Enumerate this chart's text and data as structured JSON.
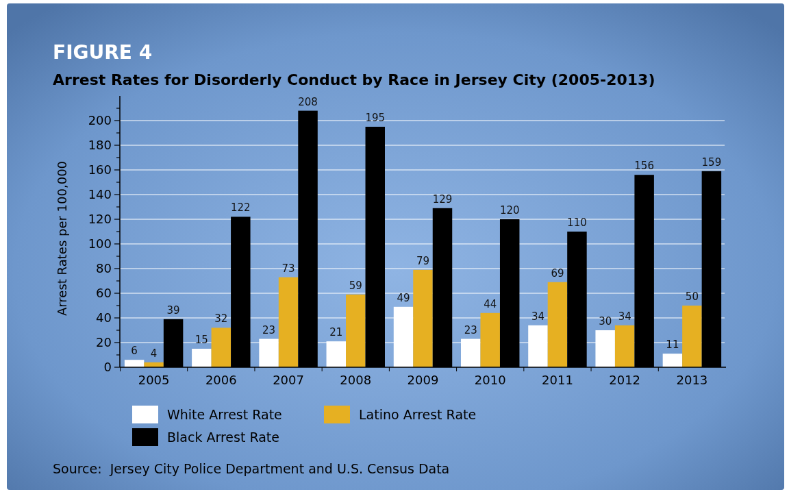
{
  "chart_data": {
    "type": "bar",
    "title": "FIGURE 4",
    "subtitle": "Arrest Rates for Disorderly Conduct by Race in Jersey City (2005-2013)",
    "ylabel": "Arrest Rates per 100,000",
    "categories": [
      "2005",
      "2006",
      "2007",
      "2008",
      "2009",
      "2010",
      "2011",
      "2012",
      "2013"
    ],
    "series": [
      {
        "name": "White Arrest Rate",
        "color": "#ffffff",
        "values": [
          6,
          15,
          23,
          21,
          49,
          23,
          34,
          30,
          11
        ]
      },
      {
        "name": "Latino Arrest Rate",
        "color": "#e6b022",
        "values": [
          4,
          32,
          73,
          59,
          79,
          44,
          69,
          34,
          50
        ]
      },
      {
        "name": "Black Arrest Rate",
        "color": "#000000",
        "values": [
          39,
          122,
          208,
          195,
          129,
          120,
          110,
          156,
          159
        ]
      }
    ],
    "ylim": [
      0,
      220
    ],
    "yticks": [
      0,
      {
        "value": 10,
        "label": null
      },
      20,
      {
        "value": 30,
        "label": null
      },
      40,
      {
        "value": 50,
        "label": null
      },
      60,
      {
        "value": 70,
        "label": null
      },
      80,
      {
        "value": 90,
        "label": null
      },
      100,
      {
        "value": 110,
        "label": null
      },
      120,
      {
        "value": 130,
        "label": null
      },
      140,
      {
        "value": 150,
        "label": null
      },
      160,
      {
        "value": 170,
        "label": null
      },
      180,
      {
        "value": 190,
        "label": null
      },
      200,
      {
        "value": 210,
        "label": null
      }
    ],
    "grid": "y",
    "legend": "bottom",
    "data_labels": true,
    "annotations": [
      "Source:  Jersey City Police Department and U.S. Census Data"
    ]
  }
}
